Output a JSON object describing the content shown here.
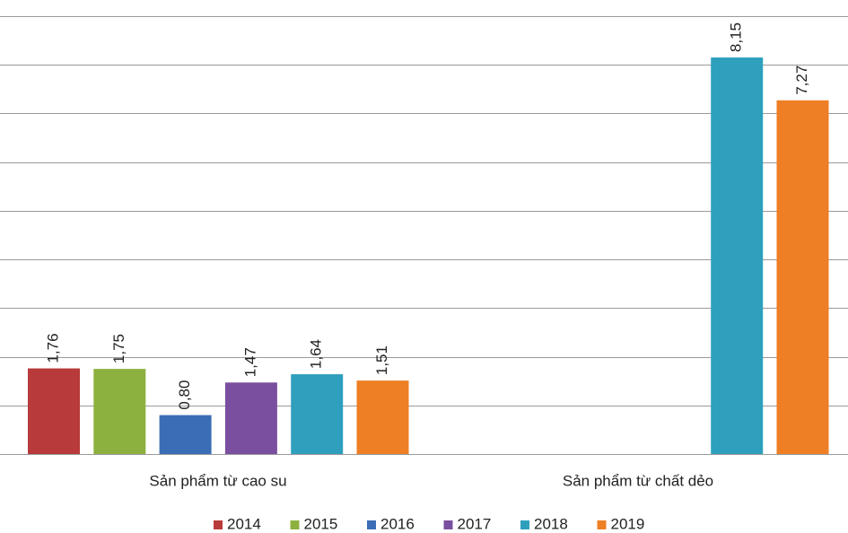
{
  "chart_data": {
    "type": "bar",
    "categories": [
      "Sản phẩm từ cao su",
      "Sản phẩm từ chất dẻo"
    ],
    "series": [
      {
        "name": "2014",
        "color": "#b83a3a",
        "values": [
          1.76,
          null
        ],
        "value_labels": [
          "1,76",
          null
        ]
      },
      {
        "name": "2015",
        "color": "#8db13f",
        "values": [
          1.75,
          null
        ],
        "value_labels": [
          "1,75",
          null
        ]
      },
      {
        "name": "2016",
        "color": "#3b6db6",
        "values": [
          0.8,
          null
        ],
        "value_labels": [
          "0,80",
          null
        ]
      },
      {
        "name": "2017",
        "color": "#7a4f9f",
        "values": [
          1.47,
          null
        ],
        "value_labels": [
          "1,47",
          null
        ]
      },
      {
        "name": "2018",
        "color": "#2e9fbd",
        "values": [
          1.64,
          8.15
        ],
        "value_labels": [
          "1,64",
          "8,15"
        ]
      },
      {
        "name": "2019",
        "color": "#ee7f24",
        "values": [
          1.51,
          7.27
        ],
        "value_labels": [
          "1,51",
          "7,27"
        ]
      }
    ],
    "ylim": [
      0,
      9
    ],
    "yticks": [
      0,
      1,
      2,
      3,
      4,
      5,
      6,
      7,
      8,
      9
    ],
    "grid": true
  }
}
